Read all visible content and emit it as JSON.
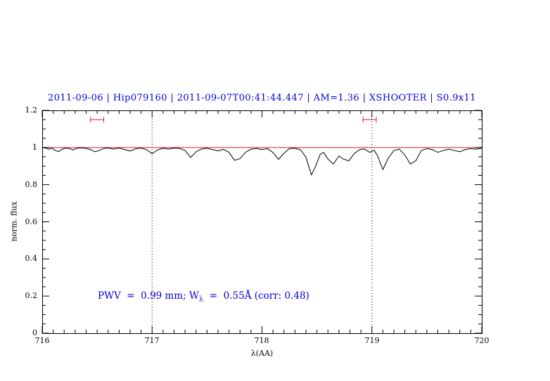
{
  "chart_data": {
    "type": "line",
    "title": "2011-09-06 | Hip079160 | 2011-09-07T00:41:44.447 | AM=1.36 | XSHOOTER | S0.9x11",
    "xlabel": "λ(AA)",
    "ylabel": "norm. flux",
    "xlim": [
      716,
      720
    ],
    "ylim": [
      0,
      1.2
    ],
    "grid": "dotted vertical lines at measured telluric line positions",
    "legend": "none",
    "xticks": {
      "values": [
        716,
        717,
        718,
        719,
        720
      ],
      "labels": [
        "716",
        "717",
        "718",
        "719",
        "720"
      ],
      "minor_step": 0.1
    },
    "yticks": {
      "values": [
        0,
        0.2,
        0.4,
        0.6,
        0.8,
        1.0,
        1.2
      ],
      "labels": [
        "0",
        "0.2",
        "0.4",
        "0.6",
        "0.8",
        "1",
        "1.2"
      ],
      "minor_step": 0.05
    },
    "gridlines": {
      "x_dotted": [
        717,
        719
      ]
    },
    "series": [
      {
        "name": "observed-normalized-spectrum",
        "color": "#000000",
        "points": [
          [
            716.0,
            1.0
          ],
          [
            716.03,
            0.997
          ],
          [
            716.06,
            0.991
          ],
          [
            716.09,
            0.996
          ],
          [
            716.12,
            0.984
          ],
          [
            716.15,
            0.978
          ],
          [
            716.18,
            0.991
          ],
          [
            716.22,
            0.997
          ],
          [
            716.25,
            0.994
          ],
          [
            716.28,
            0.987
          ],
          [
            716.31,
            0.995
          ],
          [
            716.35,
            0.998
          ],
          [
            716.4,
            0.995
          ],
          [
            716.44,
            0.989
          ],
          [
            716.48,
            0.977
          ],
          [
            716.52,
            0.984
          ],
          [
            716.56,
            0.995
          ],
          [
            716.6,
            0.997
          ],
          [
            716.65,
            0.992
          ],
          [
            716.7,
            0.997
          ],
          [
            716.75,
            0.989
          ],
          [
            716.8,
            0.981
          ],
          [
            716.85,
            0.993
          ],
          [
            716.9,
            0.997
          ],
          [
            716.95,
            0.988
          ],
          [
            717.0,
            0.967
          ],
          [
            717.05,
            0.987
          ],
          [
            717.1,
            0.996
          ],
          [
            717.15,
            0.992
          ],
          [
            717.2,
            0.997
          ],
          [
            717.25,
            0.995
          ],
          [
            717.3,
            0.984
          ],
          [
            717.35,
            0.946
          ],
          [
            717.4,
            0.977
          ],
          [
            717.45,
            0.992
          ],
          [
            717.5,
            0.996
          ],
          [
            717.55,
            0.989
          ],
          [
            717.6,
            0.982
          ],
          [
            717.65,
            0.99
          ],
          [
            717.7,
            0.974
          ],
          [
            717.75,
            0.931
          ],
          [
            717.8,
            0.94
          ],
          [
            717.85,
            0.974
          ],
          [
            717.9,
            0.991
          ],
          [
            717.95,
            0.995
          ],
          [
            718.0,
            0.989
          ],
          [
            718.05,
            0.994
          ],
          [
            718.1,
            0.973
          ],
          [
            718.15,
            0.936
          ],
          [
            718.2,
            0.969
          ],
          [
            718.25,
            0.994
          ],
          [
            718.3,
            0.996
          ],
          [
            718.35,
            0.988
          ],
          [
            718.4,
            0.948
          ],
          [
            718.45,
            0.852
          ],
          [
            718.49,
            0.902
          ],
          [
            718.53,
            0.963
          ],
          [
            718.56,
            0.974
          ],
          [
            718.6,
            0.938
          ],
          [
            718.65,
            0.911
          ],
          [
            718.7,
            0.954
          ],
          [
            718.74,
            0.938
          ],
          [
            718.79,
            0.928
          ],
          [
            718.84,
            0.968
          ],
          [
            718.89,
            0.989
          ],
          [
            718.93,
            0.992
          ],
          [
            718.98,
            0.974
          ],
          [
            719.02,
            0.985
          ],
          [
            719.05,
            0.958
          ],
          [
            719.1,
            0.881
          ],
          [
            719.15,
            0.944
          ],
          [
            719.2,
            0.984
          ],
          [
            719.25,
            0.991
          ],
          [
            719.3,
            0.959
          ],
          [
            719.35,
            0.911
          ],
          [
            719.4,
            0.929
          ],
          [
            719.45,
            0.984
          ],
          [
            719.5,
            0.994
          ],
          [
            719.55,
            0.989
          ],
          [
            719.6,
            0.974
          ],
          [
            719.65,
            0.984
          ],
          [
            719.7,
            0.991
          ],
          [
            719.75,
            0.984
          ],
          [
            719.8,
            0.977
          ],
          [
            719.85,
            0.989
          ],
          [
            719.9,
            0.994
          ],
          [
            719.95,
            0.991
          ],
          [
            720.0,
            0.997
          ]
        ]
      },
      {
        "name": "continuum-fit-line",
        "color": "#cc2222",
        "points": [
          [
            716.0,
            1.0
          ],
          [
            720.0,
            1.0
          ]
        ]
      }
    ],
    "line_markers": [
      {
        "x1": 716.44,
        "x2": 716.56,
        "y": 1.15,
        "color": "#cc2222"
      },
      {
        "x1": 718.92,
        "x2": 719.04,
        "y": 1.15,
        "color": "#cc2222"
      }
    ],
    "annotation": {
      "pre": "PWV  =  0.99 mm; W",
      "sub": "λ",
      "post": "  =  0.55Å (corr: 0.48)",
      "color": "#0000dd"
    },
    "colors": {
      "title": "#0000dd",
      "annotation": "#0000dd",
      "spectrum": "#000000",
      "model": "#cc2222",
      "frame": "#000000"
    }
  }
}
